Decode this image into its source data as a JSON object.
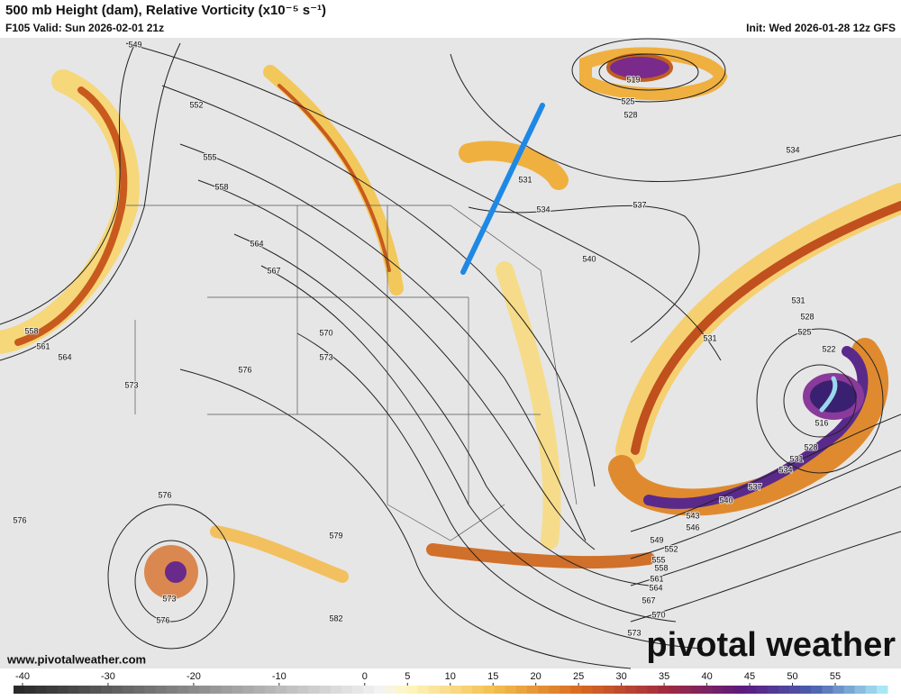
{
  "header": {
    "title": "500 mb Height (dam), Relative Vorticity (x10⁻⁵ s⁻¹)",
    "valid": "F105 Valid: Sun 2026-02-01 21z",
    "init": "Init: Wed 2026-01-28 12z GFS"
  },
  "map": {
    "contour_labels": [
      549,
      552,
      555,
      558,
      564,
      567,
      570,
      573,
      576,
      573,
      558,
      561,
      564,
      576,
      576,
      573,
      576,
      579,
      582,
      519,
      525,
      528,
      531,
      534,
      537,
      540,
      534,
      531,
      528,
      525,
      522,
      531,
      516,
      528,
      531,
      534,
      537,
      540,
      543,
      546,
      549,
      552,
      555,
      558,
      561,
      564,
      567,
      570,
      573
    ]
  },
  "footer": {
    "website": "www.pivotalweather.com",
    "logo": "pivotal weather"
  },
  "colorbar": {
    "ticks": [
      -40,
      -30,
      -20,
      -10,
      0,
      5,
      10,
      15,
      20,
      25,
      30,
      35,
      40,
      45,
      50,
      55
    ]
  }
}
